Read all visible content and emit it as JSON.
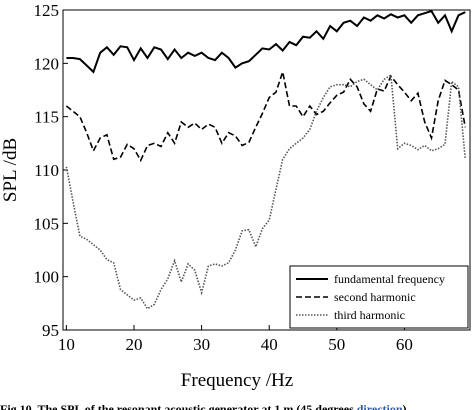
{
  "chart_data": {
    "type": "line",
    "x": [
      10,
      11,
      12,
      13,
      14,
      15,
      16,
      17,
      18,
      19,
      20,
      21,
      22,
      23,
      24,
      25,
      26,
      27,
      28,
      29,
      30,
      31,
      32,
      33,
      34,
      35,
      36,
      37,
      38,
      39,
      40,
      41,
      42,
      43,
      44,
      45,
      46,
      47,
      48,
      49,
      50,
      51,
      52,
      53,
      54,
      55,
      56,
      57,
      58,
      59,
      60,
      61,
      62,
      63,
      64,
      65,
      66,
      67,
      68,
      69
    ],
    "series": [
      {
        "name": "fundamental frequency",
        "color": "#000000",
        "line_style": "solid",
        "values": [
          120.5,
          120.5,
          120.4,
          119.8,
          119.2,
          121,
          121.5,
          120.8,
          121.6,
          121.5,
          120.3,
          121.4,
          120.5,
          121.5,
          121.3,
          120.4,
          121.3,
          120.5,
          121,
          120.7,
          121,
          120.5,
          120.3,
          121,
          120.5,
          119.6,
          120,
          120.2,
          120.8,
          121.4,
          121.3,
          121.8,
          121.2,
          122,
          121.7,
          122.5,
          122.4,
          123,
          122.3,
          123.5,
          123,
          123.8,
          124,
          123.5,
          124.3,
          124,
          124.5,
          124.2,
          124.6,
          124.3,
          124.5,
          123.8,
          124.5,
          124.7,
          124.9,
          123.8,
          124.5,
          123,
          124.5,
          124.8
        ]
      },
      {
        "name": "second harmonic",
        "color": "#000000",
        "line_style": "dashed",
        "values": [
          116,
          115.5,
          115,
          113.5,
          111.8,
          113,
          113.3,
          111,
          111.2,
          112.4,
          112,
          110.9,
          112.3,
          112.5,
          112.2,
          113.5,
          112.5,
          114.5,
          114,
          114.4,
          113.8,
          114.3,
          114,
          112.5,
          113.5,
          113.2,
          112.3,
          112.6,
          114,
          115.3,
          116.8,
          117.3,
          119.2,
          116,
          116,
          115,
          116,
          115.2,
          115.5,
          116.3,
          117,
          117.3,
          118.5,
          117.8,
          116.2,
          115.5,
          117.6,
          117.4,
          118.8,
          118,
          117.3,
          116.5,
          117.2,
          114.5,
          113,
          116.5,
          118.4,
          118,
          117.5,
          114
        ]
      },
      {
        "name": "third harmonic",
        "color": "#555555",
        "line_style": "dotted",
        "values": [
          110.3,
          107,
          103.8,
          103.5,
          103,
          102.5,
          101.6,
          101.3,
          98.8,
          98.3,
          97.8,
          98,
          97,
          97.4,
          98.8,
          99.8,
          101.5,
          99.5,
          101.2,
          100.6,
          98.5,
          101,
          101.2,
          101,
          101.3,
          102.5,
          104.3,
          104.4,
          102.8,
          104.5,
          105.3,
          108.2,
          111,
          112,
          112.5,
          113,
          113.8,
          115.5,
          116.8,
          117.8,
          118,
          118,
          117.8,
          118.3,
          118.5,
          118,
          117.5,
          118.5,
          118.9,
          112,
          112.5,
          112.3,
          111.9,
          112.3,
          111.8,
          112,
          112.4,
          118.3,
          117.8,
          111
        ]
      }
    ],
    "xlabel": "Frequency /Hz",
    "ylabel": "SPL /dB",
    "xlim": [
      9.5,
      69.7
    ],
    "ylim": [
      95,
      125
    ],
    "xticks": [
      10,
      20,
      30,
      40,
      50,
      60
    ],
    "yticks": [
      95,
      100,
      105,
      110,
      115,
      120,
      125
    ],
    "legend": "lower right",
    "grid": false
  },
  "caption": {
    "text": "Fig 10. The SPL of the resonant acoustic generator at 1 m (45 degrees ",
    "link": "direction",
    "end": ")"
  }
}
